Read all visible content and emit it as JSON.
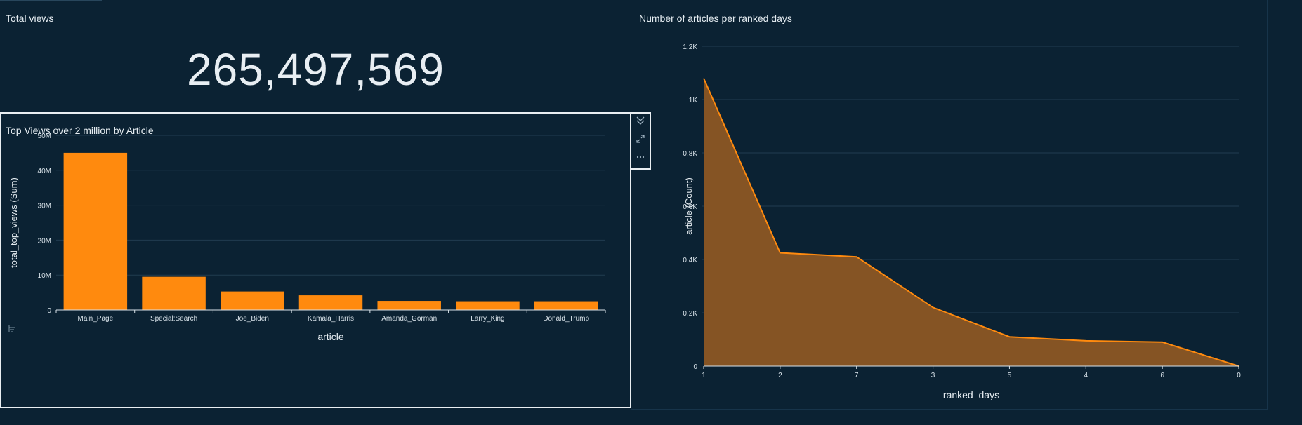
{
  "kpi": {
    "title": "Total views",
    "value": "265,497,569"
  },
  "bar_panel": {
    "title": "Top Views over 2 million by Article"
  },
  "area_panel": {
    "title": "Number of articles per ranked days"
  },
  "toolbar": {
    "icons": [
      "collapse-icon",
      "expand-icon",
      "more-options-icon"
    ]
  },
  "colors": {
    "background": "#0b2233",
    "bar": "#ff8a0e",
    "area_fill": "#855424",
    "area_line": "#ff8a0e",
    "grid": "#213c50"
  },
  "chart_data": [
    {
      "type": "bar",
      "title": "Top Views over 2 million by Article",
      "xlabel": "article",
      "ylabel": "total_top_views (Sum)",
      "categories": [
        "Main_Page",
        "Special:Search",
        "Joe_Biden",
        "Kamala_Harris",
        "Amanda_Gorman",
        "Larry_King",
        "Donald_Trump"
      ],
      "values": [
        45000000,
        9500000,
        5300000,
        4200000,
        2600000,
        2500000,
        2500000
      ],
      "ylim": [
        0,
        50000000
      ],
      "yticks": [
        0,
        10000000,
        20000000,
        30000000,
        40000000,
        50000000
      ],
      "ytick_labels": [
        "0",
        "10M",
        "20M",
        "30M",
        "40M",
        "50M"
      ],
      "grid": true
    },
    {
      "type": "area",
      "title": "Number of articles per ranked days",
      "xlabel": "ranked_days",
      "ylabel": "article (Count)",
      "categories": [
        "1",
        "2",
        "7",
        "3",
        "5",
        "4",
        "6",
        "0"
      ],
      "values": [
        1080,
        425,
        410,
        220,
        110,
        95,
        90,
        0
      ],
      "ylim": [
        0,
        1200
      ],
      "yticks": [
        0,
        200,
        400,
        600,
        800,
        1000,
        1200
      ],
      "ytick_labels": [
        "0",
        "0.2K",
        "0.4K",
        "0.6K",
        "0.8K",
        "1K",
        "1.2K"
      ],
      "grid": true
    }
  ]
}
